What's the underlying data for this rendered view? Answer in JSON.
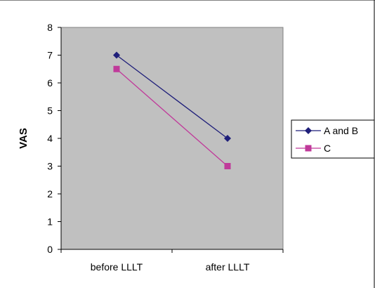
{
  "chart_data": {
    "type": "line",
    "title": "",
    "xlabel": "",
    "ylabel": "VAS",
    "categories": [
      "before LLLT",
      "after LLLT"
    ],
    "ylim": [
      0,
      8
    ],
    "yticks": [
      0,
      1,
      2,
      3,
      4,
      5,
      6,
      7,
      8
    ],
    "grid": false,
    "legend_position": "right",
    "plot_background": "#c0c0c0",
    "series": [
      {
        "name": "A and B",
        "values": [
          7,
          4
        ],
        "color": "#1f1f7a",
        "marker": "diamond"
      },
      {
        "name": "C",
        "values": [
          6.5,
          3
        ],
        "color": "#c0399a",
        "marker": "square"
      }
    ]
  }
}
